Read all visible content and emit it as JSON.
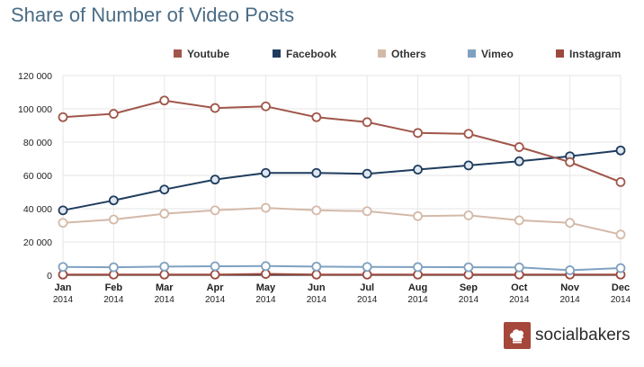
{
  "page": {
    "title": "Share of Number of Video Posts",
    "brand": "socialbakers"
  },
  "colors": {
    "grid": "#e6e6e6",
    "axis": "#333333"
  },
  "chart_data": {
    "type": "line",
    "title": "Share of Number of Video Posts",
    "xlabel": "",
    "ylabel": "",
    "categories": [
      "Jan",
      "Feb",
      "Mar",
      "Apr",
      "May",
      "Jun",
      "Jul",
      "Aug",
      "Sep",
      "Oct",
      "Nov",
      "Dec"
    ],
    "category_sub": [
      "2014",
      "2014",
      "2014",
      "2014",
      "2014",
      "2014",
      "2014",
      "2014",
      "2014",
      "2014",
      "2014",
      "2014"
    ],
    "y_ticks": [
      "0",
      "20 000",
      "40 000",
      "60 000",
      "80 000",
      "100 000",
      "120 000"
    ],
    "ylim": [
      0,
      120000
    ],
    "grid": true,
    "legend_position": "top-right",
    "series": [
      {
        "name": "Youtube",
        "color": "#a0564a",
        "marker_fill": "#ffffff",
        "values": [
          95000,
          97000,
          105000,
          100500,
          101500,
          95000,
          92000,
          85500,
          85000,
          77000,
          68000,
          56000
        ]
      },
      {
        "name": "Facebook",
        "color": "#1f3c5e",
        "marker_fill": "#dfe7f0",
        "values": [
          39000,
          45000,
          51500,
          57500,
          61500,
          61500,
          61000,
          63500,
          66000,
          68500,
          71500,
          75000
        ]
      },
      {
        "name": "Others",
        "color": "#d4b9a8",
        "marker_fill": "#ffffff",
        "values": [
          31500,
          33500,
          37000,
          39000,
          40500,
          39000,
          38500,
          35500,
          36000,
          33000,
          31500,
          24500
        ]
      },
      {
        "name": "Vimeo",
        "color": "#7fa1c0",
        "marker_fill": "#ffffff",
        "values": [
          5000,
          4800,
          5200,
          5400,
          5500,
          5200,
          5000,
          4900,
          4800,
          4700,
          3000,
          4300
        ]
      },
      {
        "name": "Instagram",
        "color": "#9c4a3f",
        "marker_fill": "#ffffff",
        "values": [
          400,
          400,
          400,
          400,
          800,
          400,
          400,
          400,
          400,
          400,
          400,
          400
        ]
      }
    ]
  }
}
